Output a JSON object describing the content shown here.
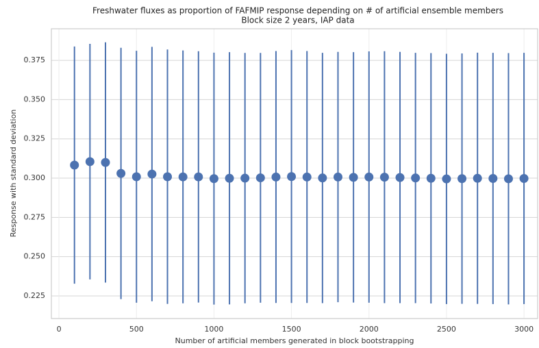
{
  "chart_data": {
    "type": "errorbar",
    "title": "Freshwater fluxes as proportion of FAFMIP response depending on # of artificial ensemble members",
    "subtitle": "Block size 2 years, IAP data",
    "x_label": "Number of artificial members generated in block bootstrapping",
    "y_label": "Response with standard deviation",
    "x": [
      100,
      200,
      300,
      400,
      500,
      600,
      700,
      800,
      900,
      1000,
      1100,
      1200,
      1300,
      1400,
      1500,
      1600,
      1700,
      1800,
      1900,
      2000,
      2100,
      2200,
      2300,
      2400,
      2500,
      2600,
      2700,
      2800,
      2900,
      3000
    ],
    "values": [
      0.3083,
      0.3105,
      0.31,
      0.303,
      0.3009,
      0.3026,
      0.3009,
      0.3008,
      0.3008,
      0.2997,
      0.2999,
      0.3,
      0.3002,
      0.3007,
      0.301,
      0.3007,
      0.3001,
      0.3007,
      0.3005,
      0.3007,
      0.3006,
      0.3004,
      0.3001,
      0.2999,
      0.2995,
      0.2997,
      0.2999,
      0.2998,
      0.2996,
      0.2998
    ],
    "errors": [
      0.0755,
      0.075,
      0.0765,
      0.08,
      0.0802,
      0.081,
      0.081,
      0.0805,
      0.08,
      0.0802,
      0.0803,
      0.0797,
      0.0795,
      0.0802,
      0.0805,
      0.0802,
      0.0797,
      0.0797,
      0.0797,
      0.08,
      0.0802,
      0.08,
      0.0797,
      0.0797,
      0.0797,
      0.0797,
      0.08,
      0.08,
      0.08,
      0.08
    ],
    "color": "#4c72b0",
    "xlim": [
      -49,
      3088
    ],
    "ylim": [
      0.2106,
      0.3951
    ],
    "xticks": [
      0,
      500,
      1000,
      1500,
      2000,
      2500,
      3000
    ],
    "yticks": [
      0.225,
      {
        "value": 0.25,
        "label": "0.250"
      },
      0.275,
      {
        "value": 0.3,
        "label": "0.300"
      },
      0.325,
      {
        "value": 0.35,
        "label": "0.350"
      },
      0.375
    ],
    "grid": true
  }
}
